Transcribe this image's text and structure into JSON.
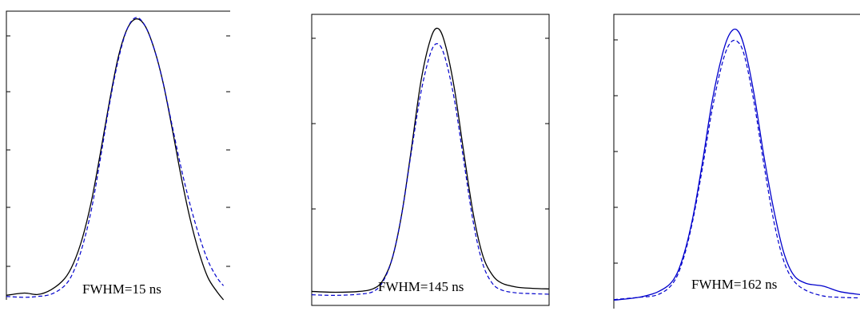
{
  "chart_data": [
    {
      "type": "line",
      "annotation": "FWHM=15 ns",
      "xlim": [
        0,
        1
      ],
      "ylim": [
        0,
        1
      ],
      "grid": false,
      "series": [
        {
          "style": "solid",
          "color": "#000000",
          "points": [
            [
              0.0,
              0.016
            ],
            [
              0.08,
              0.024
            ],
            [
              0.14,
              0.019
            ],
            [
              0.2,
              0.036
            ],
            [
              0.26,
              0.075
            ],
            [
              0.3,
              0.13
            ],
            [
              0.34,
              0.22
            ],
            [
              0.38,
              0.35
            ],
            [
              0.42,
              0.52
            ],
            [
              0.46,
              0.7
            ],
            [
              0.5,
              0.86
            ],
            [
              0.54,
              0.96
            ],
            [
              0.58,
              0.995
            ],
            [
              0.62,
              0.97
            ],
            [
              0.66,
              0.89
            ],
            [
              0.7,
              0.77
            ],
            [
              0.74,
              0.61
            ],
            [
              0.78,
              0.44
            ],
            [
              0.82,
              0.29
            ],
            [
              0.86,
              0.17
            ],
            [
              0.9,
              0.08
            ],
            [
              0.94,
              0.03
            ],
            [
              0.97,
              0.0
            ]
          ]
        },
        {
          "style": "dashed",
          "color": "#0000cc",
          "points": [
            [
              0.0,
              0.012
            ],
            [
              0.08,
              0.009
            ],
            [
              0.14,
              0.012
            ],
            [
              0.2,
              0.02
            ],
            [
              0.26,
              0.05
            ],
            [
              0.3,
              0.1
            ],
            [
              0.34,
              0.19
            ],
            [
              0.38,
              0.32
            ],
            [
              0.42,
              0.5
            ],
            [
              0.46,
              0.69
            ],
            [
              0.5,
              0.85
            ],
            [
              0.54,
              0.96
            ],
            [
              0.58,
              1.0
            ],
            [
              0.62,
              0.97
            ],
            [
              0.66,
              0.89
            ],
            [
              0.7,
              0.77
            ],
            [
              0.74,
              0.62
            ],
            [
              0.78,
              0.47
            ],
            [
              0.82,
              0.34
            ],
            [
              0.86,
              0.23
            ],
            [
              0.9,
              0.14
            ],
            [
              0.94,
              0.08
            ],
            [
              0.97,
              0.05
            ]
          ]
        }
      ]
    },
    {
      "type": "line",
      "annotation": "FWHM=145 ns",
      "xlim": [
        0,
        1
      ],
      "ylim": [
        0,
        1
      ],
      "grid": false,
      "series": [
        {
          "style": "solid",
          "color": "#000000",
          "points": [
            [
              0.0,
              0.05
            ],
            [
              0.1,
              0.047
            ],
            [
              0.2,
              0.05
            ],
            [
              0.26,
              0.06
            ],
            [
              0.3,
              0.09
            ],
            [
              0.34,
              0.17
            ],
            [
              0.38,
              0.33
            ],
            [
              0.42,
              0.56
            ],
            [
              0.46,
              0.8
            ],
            [
              0.5,
              0.95
            ],
            [
              0.53,
              0.99
            ],
            [
              0.56,
              0.94
            ],
            [
              0.6,
              0.78
            ],
            [
              0.64,
              0.55
            ],
            [
              0.68,
              0.33
            ],
            [
              0.72,
              0.18
            ],
            [
              0.76,
              0.11
            ],
            [
              0.8,
              0.08
            ],
            [
              0.86,
              0.066
            ],
            [
              0.93,
              0.061
            ],
            [
              1.0,
              0.059
            ]
          ]
        },
        {
          "style": "dashed",
          "color": "#0000cc",
          "points": [
            [
              0.0,
              0.038
            ],
            [
              0.1,
              0.036
            ],
            [
              0.2,
              0.04
            ],
            [
              0.26,
              0.05
            ],
            [
              0.3,
              0.085
            ],
            [
              0.34,
              0.17
            ],
            [
              0.38,
              0.33
            ],
            [
              0.42,
              0.55
            ],
            [
              0.46,
              0.76
            ],
            [
              0.5,
              0.9
            ],
            [
              0.53,
              0.935
            ],
            [
              0.56,
              0.89
            ],
            [
              0.6,
              0.74
            ],
            [
              0.64,
              0.52
            ],
            [
              0.68,
              0.3
            ],
            [
              0.72,
              0.15
            ],
            [
              0.76,
              0.08
            ],
            [
              0.8,
              0.055
            ],
            [
              0.86,
              0.045
            ],
            [
              0.93,
              0.042
            ],
            [
              1.0,
              0.04
            ]
          ]
        }
      ]
    },
    {
      "type": "line",
      "annotation": "FWHM=162 ns",
      "xlim": [
        0,
        1
      ],
      "ylim": [
        0,
        1
      ],
      "grid": false,
      "series": [
        {
          "style": "solid",
          "color": "#0000cc",
          "points": [
            [
              0.0,
              0.03
            ],
            [
              0.1,
              0.04
            ],
            [
              0.18,
              0.06
            ],
            [
              0.24,
              0.1
            ],
            [
              0.28,
              0.18
            ],
            [
              0.32,
              0.32
            ],
            [
              0.36,
              0.52
            ],
            [
              0.4,
              0.74
            ],
            [
              0.44,
              0.9
            ],
            [
              0.47,
              0.975
            ],
            [
              0.5,
              0.99
            ],
            [
              0.53,
              0.93
            ],
            [
              0.57,
              0.76
            ],
            [
              0.61,
              0.54
            ],
            [
              0.65,
              0.35
            ],
            [
              0.69,
              0.2
            ],
            [
              0.73,
              0.12
            ],
            [
              0.78,
              0.09
            ],
            [
              0.85,
              0.08
            ],
            [
              0.92,
              0.06
            ],
            [
              1.0,
              0.05
            ]
          ]
        },
        {
          "style": "dashed",
          "color": "#0000cc",
          "points": [
            [
              0.0,
              0.032
            ],
            [
              0.1,
              0.04
            ],
            [
              0.18,
              0.05
            ],
            [
              0.24,
              0.09
            ],
            [
              0.28,
              0.17
            ],
            [
              0.32,
              0.31
            ],
            [
              0.36,
              0.5
            ],
            [
              0.4,
              0.71
            ],
            [
              0.44,
              0.87
            ],
            [
              0.47,
              0.94
            ],
            [
              0.5,
              0.95
            ],
            [
              0.53,
              0.9
            ],
            [
              0.57,
              0.73
            ],
            [
              0.61,
              0.51
            ],
            [
              0.65,
              0.31
            ],
            [
              0.69,
              0.17
            ],
            [
              0.73,
              0.1
            ],
            [
              0.78,
              0.065
            ],
            [
              0.85,
              0.045
            ],
            [
              0.92,
              0.04
            ],
            [
              1.0,
              0.038
            ]
          ]
        }
      ]
    }
  ]
}
